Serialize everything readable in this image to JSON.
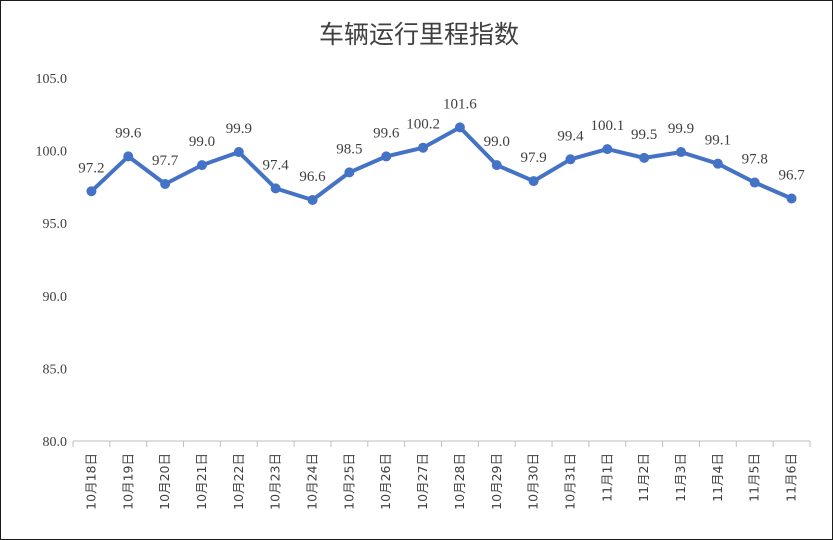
{
  "chart_data": {
    "type": "line",
    "title": "车辆运行里程指数",
    "categories": [
      "10月18日",
      "10月19日",
      "10月20日",
      "10月21日",
      "10月22日",
      "10月23日",
      "10月24日",
      "10月25日",
      "10月26日",
      "10月27日",
      "10月28日",
      "10月29日",
      "10月30日",
      "10月31日",
      "11月1日",
      "11月2日",
      "11月3日",
      "11月4日",
      "11月5日",
      "11月6日"
    ],
    "series": [
      {
        "values": [
          97.2,
          99.6,
          97.7,
          99.0,
          99.9,
          97.4,
          96.6,
          98.5,
          99.6,
          100.2,
          101.6,
          99.0,
          97.9,
          99.4,
          100.1,
          99.5,
          99.9,
          99.1,
          97.8,
          96.7
        ],
        "labels": [
          "97.2",
          "99.6",
          "97.7",
          "99.0",
          "99.9",
          "97.4",
          "96.6",
          "98.5",
          "99.6",
          "100.2",
          "101.6",
          "99.0",
          "97.9",
          "99.4",
          "100.1",
          "99.5",
          "99.9",
          "99.1",
          "97.8",
          "96.7"
        ],
        "color": "#4472C4"
      }
    ],
    "ylim": [
      80,
      105
    ],
    "yticks": [
      "80.0",
      "85.0",
      "90.0",
      "95.0",
      "100.0",
      "105.0"
    ],
    "ytick_values": [
      80,
      85,
      90,
      95,
      100,
      105
    ],
    "xlabel": "",
    "ylabel": "",
    "grid": false,
    "legend": "none"
  }
}
